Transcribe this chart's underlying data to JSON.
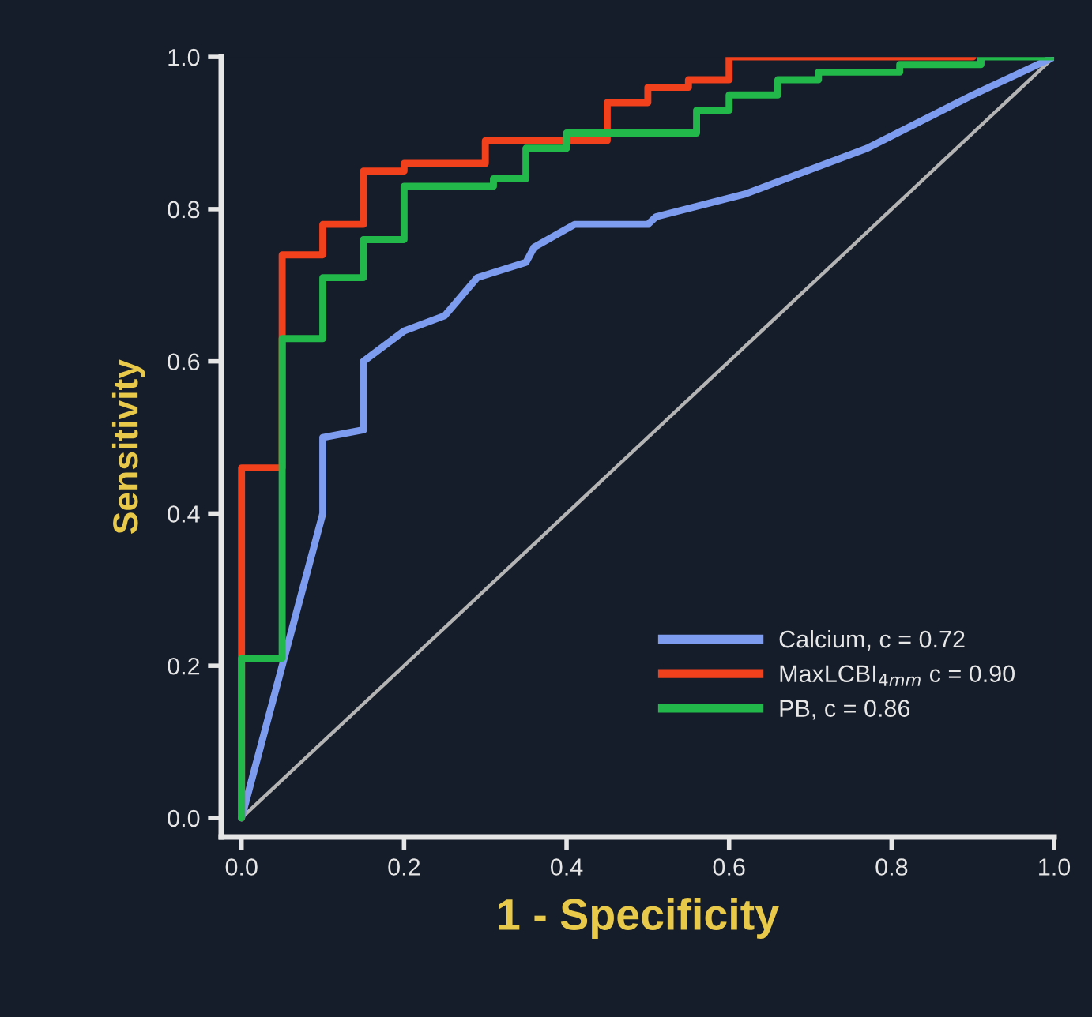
{
  "chart_data": {
    "type": "line",
    "xlabel": "1 - Specificity",
    "ylabel": "Sensitivity",
    "xlim": [
      -0.025,
      1.0
    ],
    "ylim": [
      -0.025,
      1.0
    ],
    "xticks": [
      {
        "value": 0,
        "label": "0.0"
      },
      {
        "value": 0.2,
        "label": "0.2"
      },
      {
        "value": 0.4,
        "label": "0.4"
      },
      {
        "value": 0.6,
        "label": "0.6"
      },
      {
        "value": 0.8,
        "label": "0.8"
      },
      {
        "value": 1.0,
        "label": "1.0"
      }
    ],
    "yticks": [
      {
        "value": 0,
        "label": "0.0"
      },
      {
        "value": 0.2,
        "label": "0.2"
      },
      {
        "value": 0.4,
        "label": "0.4"
      },
      {
        "value": 0.6,
        "label": "0.6"
      },
      {
        "value": 0.8,
        "label": "0.8"
      },
      {
        "value": 1.0,
        "label": "1.0"
      }
    ],
    "grid": false,
    "legend": "bottom right",
    "marker": "none",
    "line_style": "solid",
    "series": [
      {
        "color": "#b4b4b4",
        "x": [
          0,
          1.0
        ],
        "values": [
          0,
          1.0
        ]
      },
      {
        "name": "Calcium, c = 0.72",
        "color": "#7d9cf0",
        "x": [
          0,
          0.1,
          0.1,
          0.15,
          0.15,
          0.2,
          0.25,
          0.29,
          0.35,
          0.36,
          0.41,
          0.5,
          0.51,
          0.62,
          0.77,
          0.9,
          1.0
        ],
        "values": [
          0,
          0.4,
          0.5,
          0.51,
          0.6,
          0.64,
          0.66,
          0.71,
          0.73,
          0.75,
          0.78,
          0.78,
          0.79,
          0.82,
          0.88,
          0.95,
          1.0
        ]
      },
      {
        "name": "MaxLCBI$_{4mm}$ c = 0.90",
        "color": "#f0401c",
        "x": [
          0,
          0,
          0.05,
          0.05,
          0.1,
          0.1,
          0.15,
          0.15,
          0.2,
          0.2,
          0.3,
          0.3,
          0.45,
          0.45,
          0.5,
          0.5,
          0.55,
          0.55,
          0.6,
          0.6,
          0.9
        ],
        "values": [
          0,
          0.46,
          0.46,
          0.74,
          0.74,
          0.78,
          0.78,
          0.85,
          0.85,
          0.86,
          0.86,
          0.89,
          0.89,
          0.94,
          0.94,
          0.96,
          0.96,
          0.97,
          0.97,
          1.0,
          1.0
        ]
      },
      {
        "name": "PB, c = 0.86",
        "color": "#22b84a",
        "x": [
          0,
          0,
          0.05,
          0.05,
          0.1,
          0.1,
          0.15,
          0.15,
          0.2,
          0.2,
          0.31,
          0.31,
          0.35,
          0.35,
          0.4,
          0.4,
          0.56,
          0.56,
          0.6,
          0.6,
          0.66,
          0.66,
          0.71,
          0.71,
          0.81,
          0.81,
          0.91,
          0.91,
          1.0
        ],
        "values": [
          0,
          0.21,
          0.21,
          0.63,
          0.63,
          0.71,
          0.71,
          0.76,
          0.76,
          0.83,
          0.83,
          0.84,
          0.84,
          0.88,
          0.88,
          0.9,
          0.9,
          0.93,
          0.93,
          0.95,
          0.95,
          0.97,
          0.97,
          0.98,
          0.98,
          0.99,
          0.99,
          1.0,
          1.0
        ]
      }
    ]
  }
}
